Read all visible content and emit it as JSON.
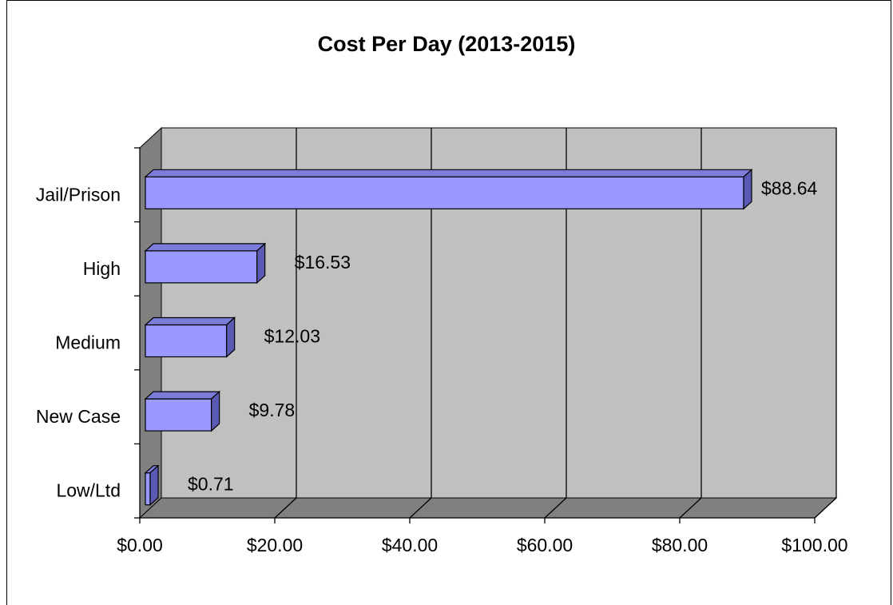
{
  "chart_data": {
    "type": "bar",
    "orientation": "horizontal",
    "style": "3d",
    "title": "Cost Per Day (2013-2015)",
    "categories": [
      "Jail/Prison",
      "High",
      "Medium",
      "New Case",
      "Low/Ltd"
    ],
    "values": [
      88.64,
      16.53,
      12.03,
      9.78,
      0.71
    ],
    "data_labels": [
      "$88.64",
      "$16.53",
      "$12.03",
      "$9.78",
      "$0.71"
    ],
    "xlim": [
      0,
      100
    ],
    "x_ticks": [
      0,
      20,
      40,
      60,
      80,
      100
    ],
    "x_tick_labels": [
      "$0.00",
      "$20.00",
      "$40.00",
      "$60.00",
      "$80.00",
      "$100.00"
    ],
    "xlabel": "",
    "ylabel": "",
    "grid": true,
    "legend": "none",
    "colors": {
      "bar_face": "#9999ff",
      "bar_top": "#7c7cd9",
      "bar_side": "#5a5ab4",
      "plot_back": "#c0c0c0",
      "plot_floor": "#808080",
      "plot_wall": "#808080"
    }
  }
}
